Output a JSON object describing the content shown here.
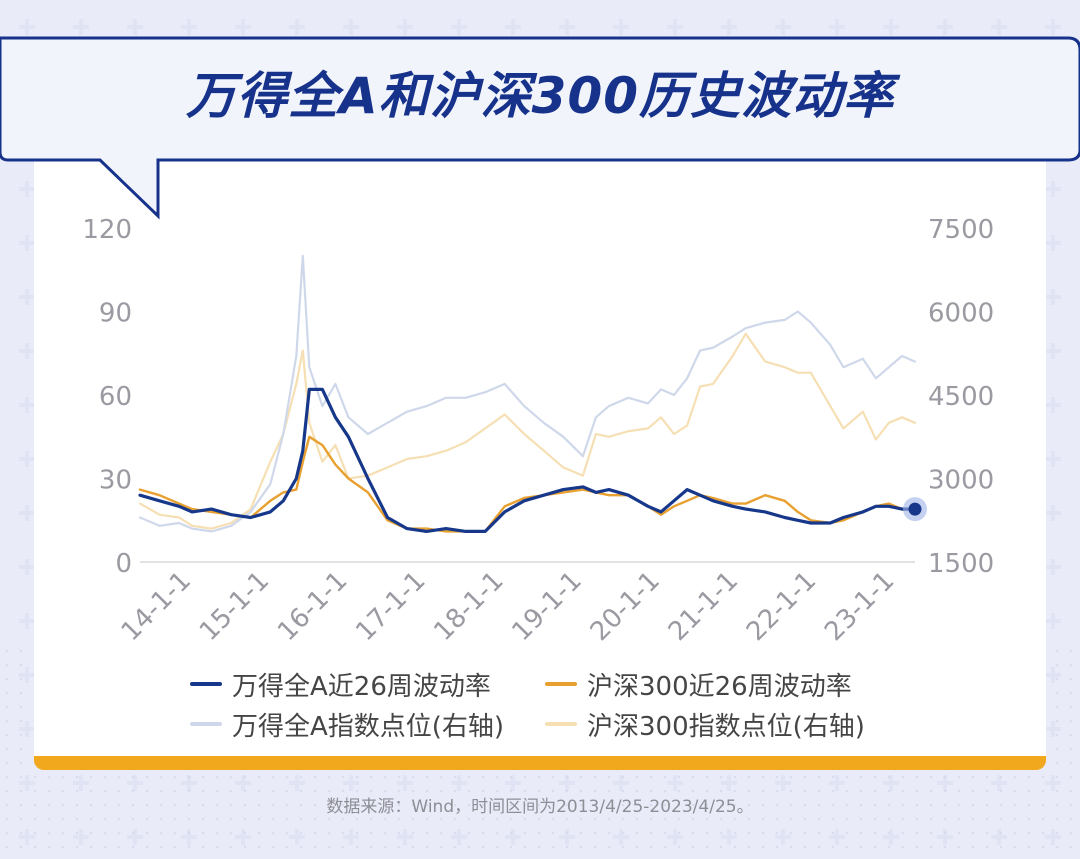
{
  "title": "万得全A和沪深300历史波动率",
  "source_note": "数据来源：Wind，时间区间为2013/4/25-2023/4/25。",
  "colors": {
    "wind_vol": "#17388a",
    "hs300_vol": "#e8a030",
    "wind_idx": "#cfd8ea",
    "hs300_idx": "#f5dfb3",
    "title": "#17328a",
    "accent_bar": "#f2a81d"
  },
  "chart_data": {
    "type": "line",
    "x": [
      "13-05",
      "13-08",
      "13-11",
      "14-01",
      "14-04",
      "14-07",
      "14-10",
      "15-01",
      "15-03",
      "15-05",
      "15-06",
      "15-07",
      "15-09",
      "15-11",
      "16-01",
      "16-04",
      "16-07",
      "16-10",
      "17-01",
      "17-04",
      "17-07",
      "17-10",
      "18-01",
      "18-04",
      "18-07",
      "18-10",
      "19-01",
      "19-03",
      "19-05",
      "19-08",
      "19-11",
      "20-01",
      "20-03",
      "20-05",
      "20-07",
      "20-09",
      "20-12",
      "21-02",
      "21-05",
      "21-08",
      "21-10",
      "21-12",
      "22-03",
      "22-05",
      "22-08",
      "22-10",
      "22-12",
      "23-02",
      "23-04"
    ],
    "x_ticks": [
      "14-1-1",
      "15-1-1",
      "16-1-1",
      "17-1-1",
      "18-1-1",
      "19-1-1",
      "20-1-1",
      "21-1-1",
      "22-1-1",
      "23-1-1"
    ],
    "y_left": {
      "label": "",
      "min": 0,
      "max": 120,
      "ticks": [
        0,
        30,
        60,
        90,
        120
      ]
    },
    "y_right": {
      "label": "",
      "min": 1500,
      "max": 7500,
      "ticks": [
        1500,
        3000,
        4500,
        6000,
        7500
      ]
    },
    "series": [
      {
        "name": "万得全A近26周波动率",
        "axis": "left",
        "values": [
          24,
          22,
          20,
          18,
          19,
          17,
          16,
          18,
          22,
          30,
          40,
          62,
          62,
          52,
          45,
          30,
          16,
          12,
          11,
          12,
          11,
          11,
          18,
          22,
          24,
          26,
          27,
          25,
          26,
          24,
          20,
          18,
          22,
          26,
          24,
          22,
          20,
          19,
          18,
          16,
          15,
          14,
          14,
          16,
          18,
          20,
          20,
          19,
          19
        ]
      },
      {
        "name": "沪深300近26周波动率",
        "axis": "left",
        "values": [
          26,
          24,
          21,
          19,
          18,
          17,
          16,
          22,
          25,
          26,
          36,
          45,
          42,
          35,
          30,
          25,
          15,
          12,
          12,
          11,
          11,
          11,
          20,
          23,
          24,
          25,
          26,
          25,
          24,
          24,
          20,
          17,
          20,
          22,
          24,
          23,
          21,
          21,
          24,
          22,
          18,
          15,
          14,
          15,
          18,
          20,
          21,
          19,
          19
        ]
      },
      {
        "name": "万得全A指数点位(右轴)",
        "axis": "right",
        "values": [
          2300,
          2150,
          2200,
          2100,
          2050,
          2150,
          2400,
          2900,
          3800,
          5200,
          7000,
          5000,
          4300,
          4700,
          4100,
          3800,
          4000,
          4200,
          4300,
          4450,
          4450,
          4550,
          4700,
          4300,
          4000,
          3750,
          3400,
          4100,
          4300,
          4450,
          4350,
          4600,
          4500,
          4800,
          5300,
          5350,
          5550,
          5700,
          5800,
          5850,
          6000,
          5800,
          5400,
          5000,
          5150,
          4800,
          5000,
          5200,
          5100
        ]
      },
      {
        "name": "沪深300指数点位(右轴)",
        "axis": "right",
        "values": [
          2550,
          2350,
          2300,
          2150,
          2100,
          2200,
          2450,
          3300,
          3800,
          4700,
          5300,
          4000,
          3300,
          3600,
          3000,
          3050,
          3200,
          3350,
          3400,
          3500,
          3650,
          3900,
          4150,
          3800,
          3500,
          3200,
          3050,
          3800,
          3750,
          3850,
          3900,
          4100,
          3800,
          3950,
          4650,
          4700,
          5200,
          5600,
          5100,
          5000,
          4900,
          4900,
          4300,
          3900,
          4200,
          3700,
          4000,
          4100,
          4000
        ]
      }
    ]
  }
}
